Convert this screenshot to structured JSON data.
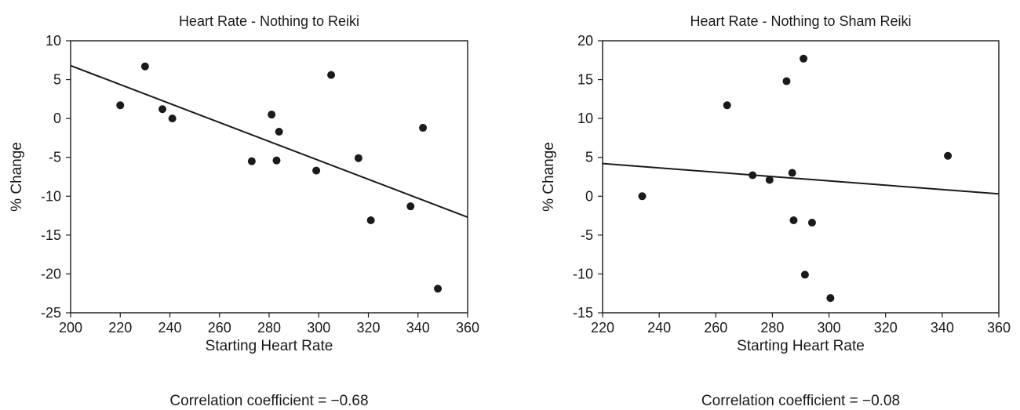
{
  "chart_data": [
    {
      "type": "scatter",
      "title": "Heart Rate - Nothing to Reiki",
      "xlabel": "Starting Heart Rate",
      "ylabel": "% Change",
      "xlim": [
        200,
        360
      ],
      "ylim": [
        -25,
        10
      ],
      "xticks": [
        "200",
        "220",
        "240",
        "260",
        "280",
        "300",
        "320",
        "340",
        "360"
      ],
      "yticks": [
        "10",
        "5",
        "0",
        "-5",
        "-10",
        "-15",
        "-20",
        "-25"
      ],
      "points": [
        {
          "x": 220,
          "y": 1.7
        },
        {
          "x": 230,
          "y": 6.7
        },
        {
          "x": 237,
          "y": 1.2
        },
        {
          "x": 241,
          "y": 0.0
        },
        {
          "x": 273,
          "y": -5.5
        },
        {
          "x": 281,
          "y": 0.5
        },
        {
          "x": 283,
          "y": -5.4
        },
        {
          "x": 284,
          "y": -1.7
        },
        {
          "x": 299,
          "y": -6.7
        },
        {
          "x": 305,
          "y": 5.6
        },
        {
          "x": 316,
          "y": -5.1
        },
        {
          "x": 321,
          "y": -13.1
        },
        {
          "x": 337,
          "y": -11.3
        },
        {
          "x": 342,
          "y": -1.2
        },
        {
          "x": 348,
          "y": -21.9
        }
      ],
      "trendline": {
        "x": [
          200,
          360
        ],
        "y": [
          6.8,
          -12.7
        ]
      },
      "grid": false,
      "annotation": "Correlation coefficient = −0.68"
    },
    {
      "type": "scatter",
      "title": "Heart Rate - Nothing to Sham Reiki",
      "xlabel": "Starting Heart Rate",
      "ylabel": "% Change",
      "xlim": [
        220,
        360
      ],
      "ylim": [
        -15,
        20
      ],
      "xticks": [
        "220",
        "240",
        "260",
        "280",
        "300",
        "320",
        "340",
        "360"
      ],
      "yticks": [
        "20",
        "15",
        "10",
        "5",
        "0",
        "-5",
        "-10",
        "-15"
      ],
      "points": [
        {
          "x": 234,
          "y": 0.0
        },
        {
          "x": 264,
          "y": 11.7
        },
        {
          "x": 273,
          "y": 2.7
        },
        {
          "x": 279,
          "y": 2.1
        },
        {
          "x": 285,
          "y": 14.8
        },
        {
          "x": 287,
          "y": 3.0
        },
        {
          "x": 287.5,
          "y": -3.1
        },
        {
          "x": 291,
          "y": 17.7
        },
        {
          "x": 291.5,
          "y": -10.1
        },
        {
          "x": 294,
          "y": -3.4
        },
        {
          "x": 300.5,
          "y": -13.1
        },
        {
          "x": 342,
          "y": 5.2
        }
      ],
      "trendline": {
        "x": [
          220,
          360
        ],
        "y": [
          4.2,
          0.3
        ]
      },
      "grid": false,
      "annotation": "Correlation coefficient = −0.08"
    }
  ]
}
